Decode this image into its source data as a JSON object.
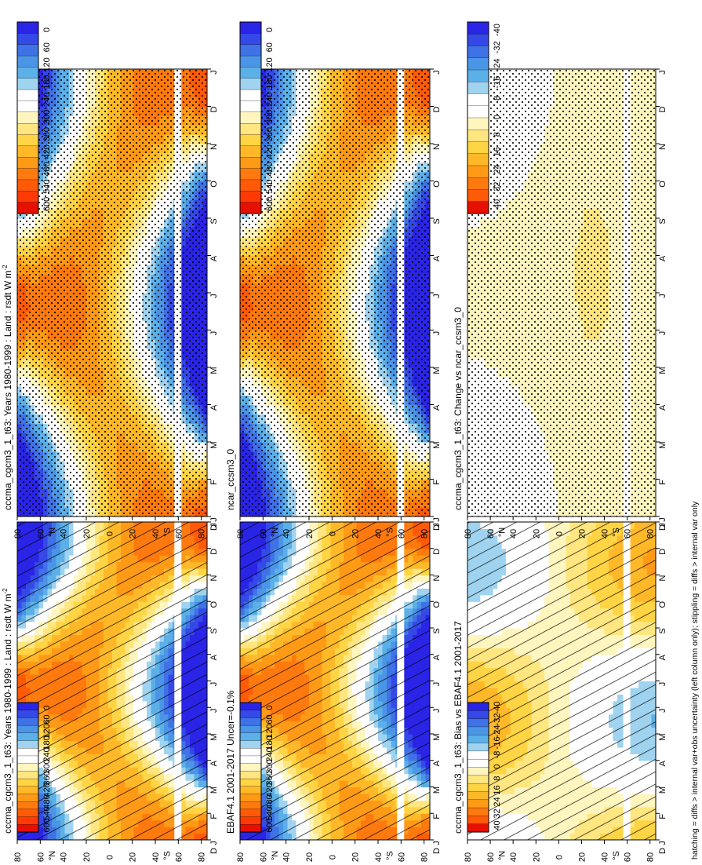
{
  "figure": {
    "footer": "hatching = diffs > internal var+obs uncertainty (left column only); stippling = diffs > internal var only"
  },
  "colors": {
    "abs_scale": [
      "#2a24e6",
      "#3449e6",
      "#3f72e6",
      "#4b95e6",
      "#5bb0e8",
      "#9fd3ef",
      "#ffffff",
      "#ffffff",
      "#fff6bf",
      "#ffe680",
      "#ffd445",
      "#ffb928",
      "#ff9a16",
      "#ff7a0e",
      "#ff5a08",
      "#ff3a05",
      "#e60f00"
    ],
    "diff_scale": [
      "#2a24e6",
      "#3449e6",
      "#3f72e6",
      "#4b95e6",
      "#5bb0e8",
      "#9fd3ef",
      "#ffffff",
      "#ffffff",
      "#fff6bf",
      "#ffe680",
      "#ffd445",
      "#ffb928",
      "#ff9a16",
      "#ff7a0e",
      "#ff5a08",
      "#e60f00"
    ]
  },
  "chart_data": [
    {
      "type": "heatmap",
      "title": "cccma_cgcm3_1_t63: Years 1980-1999 : Land : rsdt W m",
      "title_sup": "-2",
      "x_ticks": [
        "J",
        "F",
        "M",
        "A",
        "M",
        "J",
        "J",
        "A",
        "S",
        "O",
        "N",
        "D",
        "J"
      ],
      "y_ticks": [
        "80",
        "60",
        "40",
        "20",
        "0",
        "20",
        "40",
        "60",
        "80"
      ],
      "y_hemi": [
        "°N",
        "°S"
      ],
      "x_end_label": "D",
      "colorbar": [
        "600",
        "540",
        "480",
        "420",
        "360",
        "300",
        "240",
        "180",
        "120",
        "60",
        "0"
      ],
      "vmin": 0,
      "vmax": 600,
      "field": "insolation",
      "overlay": "hatch"
    },
    {
      "type": "heatmap",
      "title": "EBAF4.1 2001-2017 Uncer=-0.1%",
      "x_ticks": [
        "J",
        "F",
        "M",
        "A",
        "M",
        "J",
        "J",
        "A",
        "S",
        "O",
        "N",
        "D",
        "J"
      ],
      "y_ticks": [
        "80",
        "60",
        "40",
        "20",
        "0",
        "20",
        "40",
        "60",
        "80"
      ],
      "y_hemi": [
        "°N",
        "°S"
      ],
      "x_end_label": "D",
      "colorbar": [
        "600",
        "540",
        "480",
        "420",
        "360",
        "300",
        "240",
        "180",
        "120",
        "60",
        "0"
      ],
      "vmin": 0,
      "vmax": 600,
      "field": "insolation",
      "overlay": "hatch"
    },
    {
      "type": "heatmap",
      "title": "cccma_cgcm3_1_t63: Bias vs EBAF4.1 2001-2017",
      "x_ticks": [
        "J",
        "F",
        "M",
        "A",
        "M",
        "J",
        "J",
        "A",
        "S",
        "O",
        "N",
        "D",
        "J"
      ],
      "y_ticks": [
        "80",
        "60",
        "40",
        "20",
        "0",
        "20",
        "40",
        "60",
        "80"
      ],
      "y_hemi": [
        "°N",
        "°S"
      ],
      "x_end_label": "D",
      "colorbar": [
        "40",
        "32",
        "24",
        "16",
        "8",
        "0",
        "-8",
        "-16",
        "-24",
        "-32",
        "-40"
      ],
      "vmin": -44,
      "vmax": 44,
      "field": "bias",
      "overlay": "hatch"
    },
    {
      "type": "heatmap",
      "title": "cccma_cgcm3_1_t63: Years 1980-1999 : Land : rsdt W m",
      "title_sup": "-2",
      "x_ticks": [
        "J",
        "F",
        "M",
        "A",
        "M",
        "J",
        "J",
        "A",
        "S",
        "O",
        "N",
        "D",
        "J"
      ],
      "y_ticks": [
        "80",
        "60",
        "40",
        "20",
        "0",
        "20",
        "40",
        "60",
        "80"
      ],
      "y_hemi": [
        "°N",
        "°S"
      ],
      "x_end_label": "D",
      "colorbar": [
        "600",
        "540",
        "480",
        "420",
        "360",
        "300",
        "240",
        "180",
        "120",
        "60",
        "0"
      ],
      "vmin": 0,
      "vmax": 600,
      "field": "insolation",
      "overlay": "stipple"
    },
    {
      "type": "heatmap",
      "title": "ncar_ccsm3_0",
      "x_ticks": [
        "J",
        "F",
        "M",
        "A",
        "M",
        "J",
        "J",
        "A",
        "S",
        "O",
        "N",
        "D",
        "J"
      ],
      "y_ticks": [
        "80",
        "60",
        "40",
        "20",
        "0",
        "20",
        "40",
        "60",
        "80"
      ],
      "y_hemi": [
        "°N",
        "°S"
      ],
      "x_end_label": "D",
      "colorbar": [
        "600",
        "540",
        "480",
        "420",
        "360",
        "300",
        "240",
        "180",
        "120",
        "60",
        "0"
      ],
      "vmin": 0,
      "vmax": 600,
      "field": "insolation",
      "overlay": "stipple"
    },
    {
      "type": "heatmap",
      "title": "cccma_cgcm3_1_t63: Change vs ncar_ccsm3_0",
      "x_ticks": [
        "J",
        "F",
        "M",
        "A",
        "M",
        "J",
        "J",
        "A",
        "S",
        "O",
        "N",
        "D",
        "J"
      ],
      "y_ticks": [
        "80",
        "60",
        "40",
        "20",
        "0",
        "20",
        "40",
        "60",
        "80"
      ],
      "y_hemi": [
        "°N",
        "°S"
      ],
      "x_end_label": "D",
      "colorbar": [
        "40",
        "32",
        "24",
        "16",
        "8",
        "0",
        "-8",
        "-16",
        "-24",
        "-32",
        "-40"
      ],
      "vmin": -44,
      "vmax": 44,
      "field": "change",
      "overlay": "stipple"
    }
  ]
}
